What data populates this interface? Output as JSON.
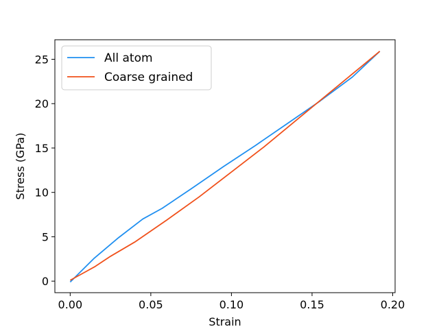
{
  "chart_data": {
    "type": "line",
    "title": "",
    "xlabel": "Strain",
    "ylabel": "Stress (GPa)",
    "xlim": [
      -0.0095,
      0.2015
    ],
    "ylim": [
      -1.3,
      27.2
    ],
    "xticks": [
      0.0,
      0.05,
      0.1,
      0.15,
      0.2
    ],
    "xtick_labels": [
      "0.00",
      "0.05",
      "0.10",
      "0.15",
      "0.20"
    ],
    "yticks": [
      0,
      5,
      10,
      15,
      20,
      25
    ],
    "ytick_labels": [
      "0",
      "5",
      "10",
      "15",
      "20",
      "25"
    ],
    "grid": false,
    "legend_position": "top-left",
    "series": [
      {
        "name": "All atom",
        "color": "#1f8ff0",
        "x": [
          0.0,
          0.015,
          0.03,
          0.045,
          0.057,
          0.075,
          0.095,
          0.115,
          0.135,
          0.155,
          0.175,
          0.192
        ],
        "y": [
          -0.1,
          2.6,
          4.9,
          7.0,
          8.2,
          10.4,
          12.9,
          15.3,
          17.8,
          20.3,
          23.0,
          25.9
        ]
      },
      {
        "name": "Coarse grained",
        "color": "#f0501a",
        "x": [
          0.0,
          0.015,
          0.025,
          0.04,
          0.06,
          0.08,
          0.1,
          0.12,
          0.14,
          0.16,
          0.18,
          0.192
        ],
        "y": [
          0.1,
          1.6,
          2.8,
          4.4,
          6.9,
          9.5,
          12.3,
          15.1,
          18.1,
          21.1,
          24.1,
          25.9
        ]
      }
    ]
  }
}
